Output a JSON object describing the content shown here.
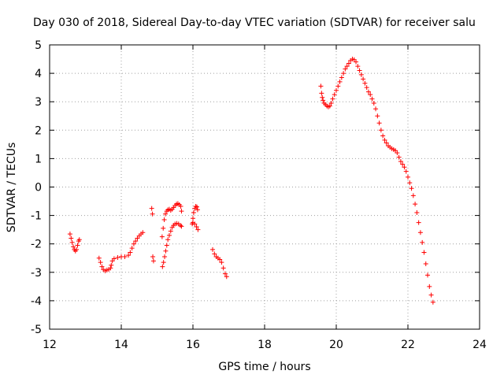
{
  "chart_data": {
    "type": "scatter",
    "title": "Day 030 of 2018, Sidereal Day-to-day VTEC variation (SDTVAR) for receiver salu",
    "xlabel": "GPS time / hours",
    "ylabel": "SDTVAR / TECUs",
    "xlim": [
      12,
      24
    ],
    "ylim": [
      -5,
      5
    ],
    "xticks": [
      12,
      14,
      16,
      18,
      20,
      22,
      24
    ],
    "yticks": [
      -5,
      -4,
      -3,
      -2,
      -1,
      0,
      1,
      2,
      3,
      4,
      5
    ],
    "grid": true,
    "marker": "+",
    "series": [
      {
        "name": "SDTVAR",
        "color": "#ff0000",
        "segments": [
          [
            [
              12.57,
              -1.65
            ],
            [
              12.6,
              -1.8
            ],
            [
              12.63,
              -1.95
            ],
            [
              12.66,
              -2.1
            ],
            [
              12.69,
              -2.2
            ],
            [
              12.72,
              -2.25
            ],
            [
              12.75,
              -2.2
            ],
            [
              12.78,
              -2.05
            ],
            [
              12.81,
              -1.9
            ],
            [
              12.83,
              -1.85
            ]
          ],
          [
            [
              13.38,
              -2.5
            ],
            [
              13.42,
              -2.65
            ],
            [
              13.46,
              -2.8
            ],
            [
              13.5,
              -2.9
            ],
            [
              13.55,
              -2.95
            ],
            [
              13.6,
              -2.92
            ],
            [
              13.65,
              -2.9
            ],
            [
              13.7,
              -2.85
            ],
            [
              13.72,
              -2.75
            ],
            [
              13.75,
              -2.6
            ],
            [
              13.8,
              -2.52
            ],
            [
              13.9,
              -2.48
            ],
            [
              14.0,
              -2.45
            ],
            [
              14.1,
              -2.45
            ],
            [
              14.2,
              -2.4
            ],
            [
              14.25,
              -2.3
            ],
            [
              14.3,
              -2.15
            ],
            [
              14.35,
              -2.0
            ],
            [
              14.4,
              -1.9
            ],
            [
              14.45,
              -1.8
            ],
            [
              14.5,
              -1.72
            ],
            [
              14.55,
              -1.65
            ],
            [
              14.6,
              -1.6
            ]
          ],
          [
            [
              14.85,
              -0.75
            ],
            [
              14.87,
              -0.95
            ]
          ],
          [
            [
              14.88,
              -2.45
            ],
            [
              14.9,
              -2.6
            ]
          ],
          [
            [
              15.15,
              -2.8
            ],
            [
              15.18,
              -2.65
            ],
            [
              15.21,
              -2.45
            ],
            [
              15.24,
              -2.25
            ],
            [
              15.27,
              -2.05
            ],
            [
              15.3,
              -1.85
            ],
            [
              15.34,
              -1.7
            ],
            [
              15.38,
              -1.55
            ],
            [
              15.42,
              -1.42
            ],
            [
              15.46,
              -1.35
            ],
            [
              15.5,
              -1.3
            ],
            [
              15.55,
              -1.28
            ],
            [
              15.6,
              -1.3
            ],
            [
              15.65,
              -1.35
            ],
            [
              15.68,
              -1.38
            ]
          ],
          [
            [
              15.14,
              -1.75
            ],
            [
              15.17,
              -1.45
            ],
            [
              15.2,
              -1.15
            ],
            [
              15.23,
              -0.95
            ],
            [
              15.27,
              -0.85
            ],
            [
              15.3,
              -0.8
            ],
            [
              15.34,
              -0.78
            ],
            [
              15.38,
              -0.82
            ],
            [
              15.42,
              -0.78
            ],
            [
              15.46,
              -0.72
            ],
            [
              15.5,
              -0.65
            ],
            [
              15.54,
              -0.6
            ],
            [
              15.58,
              -0.58
            ],
            [
              15.62,
              -0.62
            ],
            [
              15.66,
              -0.68
            ],
            [
              15.68,
              -0.85
            ]
          ],
          [
            [
              15.98,
              -1.3
            ],
            [
              16.0,
              -1.1
            ],
            [
              16.02,
              -0.9
            ],
            [
              16.05,
              -0.75
            ],
            [
              16.08,
              -0.68
            ],
            [
              16.11,
              -0.7
            ],
            [
              16.13,
              -0.8
            ],
            [
              16.0,
              -1.25
            ],
            [
              16.05,
              -1.3
            ],
            [
              16.1,
              -1.4
            ],
            [
              16.14,
              -1.5
            ]
          ],
          [
            [
              16.55,
              -2.2
            ],
            [
              16.6,
              -2.35
            ],
            [
              16.65,
              -2.45
            ],
            [
              16.7,
              -2.5
            ],
            [
              16.75,
              -2.55
            ],
            [
              16.8,
              -2.65
            ],
            [
              16.85,
              -2.85
            ],
            [
              16.9,
              -3.05
            ],
            [
              16.94,
              -3.15
            ]
          ],
          [
            [
              19.57,
              3.55
            ],
            [
              19.59,
              3.3
            ],
            [
              19.61,
              3.15
            ],
            [
              19.63,
              3.05
            ],
            [
              19.66,
              2.95
            ],
            [
              19.7,
              2.9
            ],
            [
              19.74,
              2.85
            ],
            [
              19.78,
              2.82
            ],
            [
              19.82,
              2.85
            ],
            [
              19.86,
              2.95
            ],
            [
              19.9,
              3.1
            ],
            [
              19.95,
              3.25
            ],
            [
              20.0,
              3.4
            ],
            [
              20.05,
              3.55
            ],
            [
              20.1,
              3.7
            ],
            [
              20.15,
              3.85
            ],
            [
              20.2,
              4.0
            ],
            [
              20.25,
              4.15
            ],
            [
              20.3,
              4.25
            ],
            [
              20.35,
              4.35
            ],
            [
              20.4,
              4.45
            ],
            [
              20.45,
              4.5
            ],
            [
              20.5,
              4.48
            ],
            [
              20.55,
              4.4
            ],
            [
              20.6,
              4.25
            ],
            [
              20.65,
              4.1
            ],
            [
              20.7,
              3.95
            ],
            [
              20.75,
              3.8
            ],
            [
              20.8,
              3.65
            ],
            [
              20.85,
              3.5
            ],
            [
              20.9,
              3.35
            ],
            [
              20.95,
              3.25
            ],
            [
              21.0,
              3.1
            ],
            [
              21.05,
              2.95
            ],
            [
              21.1,
              2.75
            ],
            [
              21.15,
              2.5
            ],
            [
              21.2,
              2.25
            ],
            [
              21.25,
              2.0
            ],
            [
              21.3,
              1.8
            ],
            [
              21.35,
              1.65
            ],
            [
              21.4,
              1.55
            ],
            [
              21.45,
              1.45
            ],
            [
              21.5,
              1.4
            ],
            [
              21.55,
              1.35
            ],
            [
              21.6,
              1.32
            ],
            [
              21.65,
              1.28
            ],
            [
              21.7,
              1.2
            ],
            [
              21.75,
              1.05
            ],
            [
              21.8,
              0.9
            ],
            [
              21.85,
              0.8
            ],
            [
              21.9,
              0.7
            ],
            [
              21.95,
              0.55
            ],
            [
              22.0,
              0.35
            ],
            [
              22.05,
              0.15
            ],
            [
              22.1,
              -0.05
            ],
            [
              22.15,
              -0.3
            ],
            [
              22.2,
              -0.6
            ],
            [
              22.25,
              -0.9
            ],
            [
              22.3,
              -1.25
            ],
            [
              22.35,
              -1.6
            ],
            [
              22.4,
              -1.95
            ],
            [
              22.45,
              -2.3
            ],
            [
              22.5,
              -2.7
            ],
            [
              22.55,
              -3.1
            ],
            [
              22.6,
              -3.5
            ],
            [
              22.65,
              -3.8
            ],
            [
              22.7,
              -4.05
            ]
          ]
        ]
      }
    ]
  }
}
